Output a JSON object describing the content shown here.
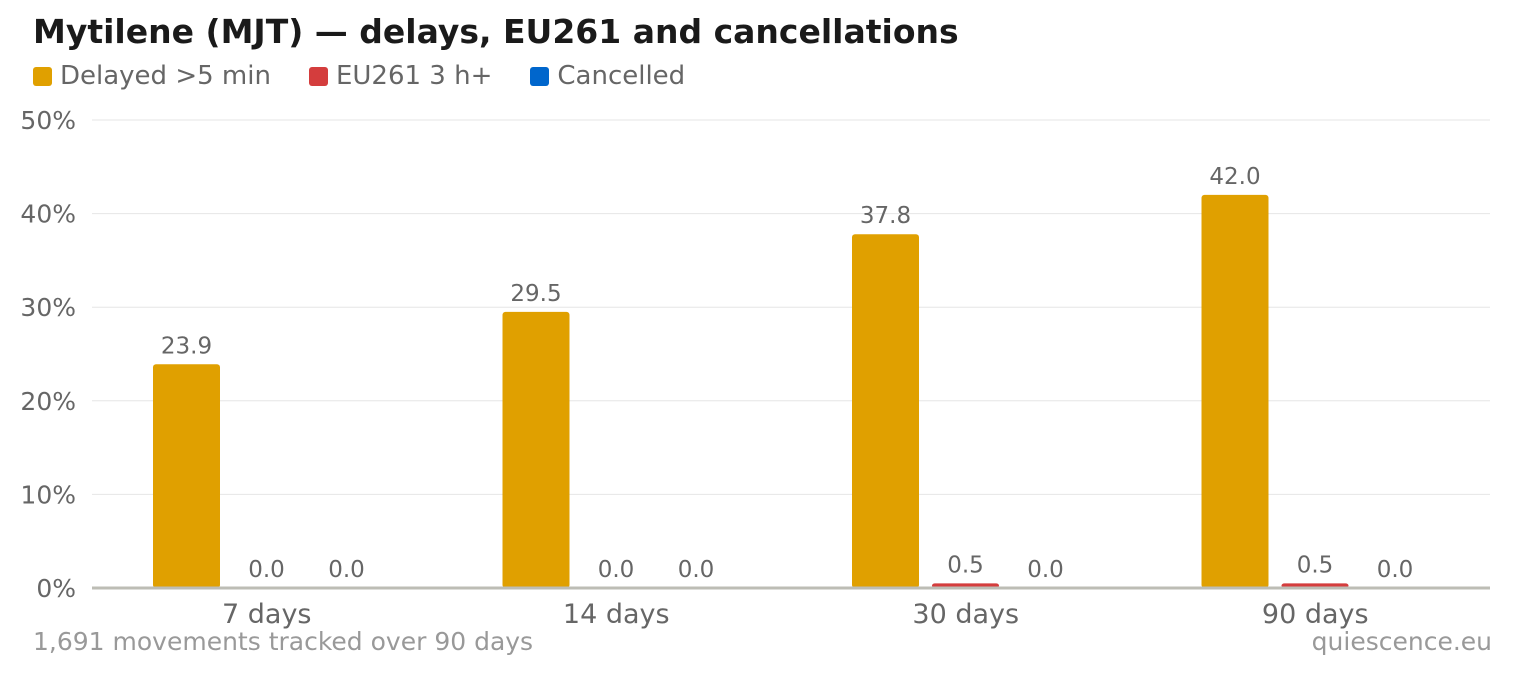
{
  "chart_data": {
    "type": "bar",
    "title": "Mytilene (MJT) — delays, EU261 and cancellations",
    "categories": [
      "7 days",
      "14 days",
      "30 days",
      "90 days"
    ],
    "series": [
      {
        "name": "Delayed >5 min",
        "color": "#e0a000",
        "values": [
          23.9,
          29.5,
          37.8,
          42.0
        ],
        "labels": [
          "23.9",
          "29.5",
          "37.8",
          "42.0"
        ]
      },
      {
        "name": "EU261 3 h+",
        "color": "#d43d3d",
        "values": [
          0.0,
          0.0,
          0.5,
          0.5
        ],
        "labels": [
          "0.0",
          "0.0",
          "0.5",
          "0.5"
        ]
      },
      {
        "name": "Cancelled",
        "color": "#0066cc",
        "values": [
          0.0,
          0.0,
          0.0,
          0.0
        ],
        "labels": [
          "0.0",
          "0.0",
          "0.0",
          "0.0"
        ]
      }
    ],
    "y_ticks": [
      "0%",
      "10%",
      "20%",
      "30%",
      "40%",
      "50%"
    ],
    "y_tick_values": [
      0,
      10,
      20,
      30,
      40,
      50
    ],
    "ylim": [
      0,
      50
    ],
    "xlabel": "",
    "ylabel": "",
    "grid": true,
    "legend": "top-left"
  },
  "footer": {
    "note": "1,691 movements tracked over 90 days",
    "credit": "quiescence.eu"
  }
}
